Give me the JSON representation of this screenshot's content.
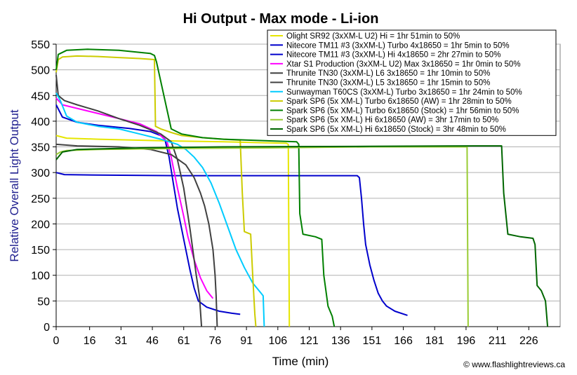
{
  "chart_data": {
    "type": "line",
    "title": "Hi Output - Max mode - Li-ion",
    "xlabel": "Time (min)",
    "ylabel": "Relative Overall Light Output",
    "credit": "© www.flashlightreviews.ca",
    "xlim": [
      0,
      241
    ],
    "ylim": [
      0,
      550
    ],
    "x_ticks": [
      0,
      16,
      31,
      46,
      61,
      76,
      91,
      106,
      121,
      136,
      151,
      166,
      181,
      196,
      211,
      226
    ],
    "y_ticks": [
      0,
      50,
      100,
      150,
      200,
      250,
      300,
      350,
      400,
      450,
      500,
      550
    ],
    "grid": "horizontal",
    "legend_position": "top-right",
    "series": [
      {
        "name": "Olight SR92 (3xXM-L U2) Hi = 1hr 51min to 50%",
        "color": "#e6e600",
        "points": [
          [
            0,
            372
          ],
          [
            5,
            367
          ],
          [
            20,
            365
          ],
          [
            50,
            362
          ],
          [
            80,
            360
          ],
          [
            100,
            358
          ],
          [
            110,
            357
          ],
          [
            111,
            355
          ],
          [
            111.5,
            0
          ]
        ]
      },
      {
        "name": "Nitecore TM11 #3 (3xXM-L) Turbo 4x18650 = 1hr 5min to 50%",
        "color": "#0000cc",
        "points": [
          [
            0,
            432
          ],
          [
            3,
            408
          ],
          [
            10,
            398
          ],
          [
            20,
            392
          ],
          [
            35,
            386
          ],
          [
            45,
            380
          ],
          [
            50,
            372
          ],
          [
            52,
            365
          ],
          [
            54,
            330
          ],
          [
            56,
            280
          ],
          [
            58,
            230
          ],
          [
            60,
            190
          ],
          [
            62,
            150
          ],
          [
            64,
            110
          ],
          [
            66,
            75
          ],
          [
            68,
            50
          ],
          [
            72,
            38
          ],
          [
            78,
            30
          ],
          [
            84,
            26
          ],
          [
            88,
            24
          ]
        ]
      },
      {
        "name": "Nitecore TM11 #3 (3xXM-L) Hi 4x18650 = 2hr 27min to 50%",
        "color": "#0000cc",
        "points": [
          [
            0,
            300
          ],
          [
            4,
            296
          ],
          [
            20,
            295
          ],
          [
            60,
            294
          ],
          [
            100,
            294
          ],
          [
            130,
            294
          ],
          [
            144,
            294
          ],
          [
            145,
            290
          ],
          [
            146,
            250
          ],
          [
            147,
            200
          ],
          [
            148,
            160
          ],
          [
            150,
            120
          ],
          [
            152,
            90
          ],
          [
            154,
            65
          ],
          [
            156,
            50
          ],
          [
            158,
            40
          ],
          [
            162,
            30
          ],
          [
            168,
            22
          ]
        ]
      },
      {
        "name": "Xtar S1 Production (3xXM-L U2) Max 3x18650 = 1hr 0min to 50%",
        "color": "#ff00ff",
        "points": [
          [
            0,
            445
          ],
          [
            3,
            432
          ],
          [
            10,
            425
          ],
          [
            20,
            415
          ],
          [
            30,
            405
          ],
          [
            40,
            395
          ],
          [
            48,
            380
          ],
          [
            53,
            360
          ],
          [
            55,
            330
          ],
          [
            58,
            270
          ],
          [
            61,
            215
          ],
          [
            63,
            175
          ],
          [
            66,
            130
          ],
          [
            69,
            95
          ],
          [
            72,
            70
          ],
          [
            75,
            55
          ]
        ]
      },
      {
        "name": "Thrunite TN30 (3xXM-L) L6 3x18650 = 1hr 10min to 50%",
        "color": "#404040",
        "points": [
          [
            0,
            490
          ],
          [
            1,
            450
          ],
          [
            4,
            440
          ],
          [
            10,
            432
          ],
          [
            20,
            420
          ],
          [
            30,
            405
          ],
          [
            40,
            392
          ],
          [
            50,
            375
          ],
          [
            55,
            360
          ],
          [
            58,
            325
          ],
          [
            61,
            270
          ],
          [
            64,
            190
          ],
          [
            67,
            100
          ],
          [
            68.5,
            60
          ],
          [
            69,
            30
          ],
          [
            69.5,
            0
          ]
        ]
      },
      {
        "name": "Thrunite TN30 (3xXM-L) L5 3x18650 = 1hr 15min to 50%",
        "color": "#404040",
        "points": [
          [
            0,
            355
          ],
          [
            10,
            352
          ],
          [
            30,
            350
          ],
          [
            45,
            345
          ],
          [
            55,
            335
          ],
          [
            62,
            315
          ],
          [
            66,
            290
          ],
          [
            69,
            260
          ],
          [
            71,
            235
          ],
          [
            73,
            200
          ],
          [
            75,
            150
          ],
          [
            76,
            100
          ],
          [
            76.5,
            60
          ],
          [
            77,
            0
          ]
        ]
      },
      {
        "name": "Sunwayman T60CS (3xXM-L) Turbo 3x18650 = 1hr 24min to 50%",
        "color": "#00ccff",
        "points": [
          [
            0,
            455
          ],
          [
            2,
            440
          ],
          [
            5,
            410
          ],
          [
            10,
            398
          ],
          [
            20,
            390
          ],
          [
            30,
            385
          ],
          [
            40,
            375
          ],
          [
            50,
            365
          ],
          [
            58,
            355
          ],
          [
            62,
            345
          ],
          [
            66,
            330
          ],
          [
            70,
            310
          ],
          [
            74,
            280
          ],
          [
            78,
            240
          ],
          [
            82,
            195
          ],
          [
            86,
            150
          ],
          [
            90,
            115
          ],
          [
            94,
            85
          ],
          [
            98,
            65
          ],
          [
            99,
            60
          ],
          [
            99.5,
            0
          ]
        ]
      },
      {
        "name": "Spark SP6 (5x XM-L) Turbo 6x18650 (AW) = 1hr 28min to 50%",
        "color": "#cccc00",
        "points": [
          [
            0,
            495
          ],
          [
            1,
            520
          ],
          [
            3,
            525
          ],
          [
            10,
            527
          ],
          [
            20,
            526
          ],
          [
            30,
            524
          ],
          [
            40,
            522
          ],
          [
            47,
            520
          ],
          [
            47.5,
            390
          ],
          [
            50,
            385
          ],
          [
            55,
            378
          ],
          [
            60,
            372
          ],
          [
            70,
            368
          ],
          [
            80,
            365
          ],
          [
            88,
            363
          ],
          [
            89,
            260
          ],
          [
            90,
            185
          ],
          [
            93,
            180
          ],
          [
            94,
            100
          ],
          [
            95,
            25
          ],
          [
            95.5,
            0
          ]
        ]
      },
      {
        "name": "Spark SP6 (5x XM-L) Turbo 6x18650 (Stock) = 1hr 56min to 50%",
        "color": "#008000",
        "points": [
          [
            0,
            500
          ],
          [
            1,
            530
          ],
          [
            5,
            538
          ],
          [
            15,
            540
          ],
          [
            30,
            538
          ],
          [
            45,
            532
          ],
          [
            47,
            528
          ],
          [
            48,
            515
          ],
          [
            55,
            385
          ],
          [
            60,
            375
          ],
          [
            70,
            368
          ],
          [
            80,
            365
          ],
          [
            100,
            362
          ],
          [
            115,
            360
          ],
          [
            116,
            355
          ],
          [
            116.5,
            220
          ],
          [
            118,
            180
          ],
          [
            124,
            175
          ],
          [
            127,
            170
          ],
          [
            128,
            100
          ],
          [
            130,
            40
          ],
          [
            132,
            20
          ],
          [
            133,
            0
          ]
        ]
      },
      {
        "name": "Spark SP6 (5x XM-L) Hi 6x18650 (AW) = 3hr 17min to 50%",
        "color": "#99cc33",
        "points": [
          [
            0,
            335
          ],
          [
            2,
            340
          ],
          [
            5,
            343
          ],
          [
            20,
            345
          ],
          [
            60,
            347
          ],
          [
            100,
            348
          ],
          [
            150,
            350
          ],
          [
            190,
            350
          ],
          [
            196.5,
            350
          ],
          [
            197,
            0
          ]
        ]
      },
      {
        "name": "Spark SP6 (5x XM-L) Hi 6x18650 (Stock) = 3hr 48min to 50%",
        "color": "#006600",
        "points": [
          [
            0,
            325
          ],
          [
            3,
            340
          ],
          [
            10,
            345
          ],
          [
            40,
            348
          ],
          [
            80,
            350
          ],
          [
            150,
            351
          ],
          [
            200,
            352
          ],
          [
            213,
            352
          ],
          [
            214,
            260
          ],
          [
            216,
            180
          ],
          [
            222,
            175
          ],
          [
            228,
            172
          ],
          [
            229,
            160
          ],
          [
            230,
            80
          ],
          [
            232,
            70
          ],
          [
            234,
            50
          ],
          [
            235,
            0
          ]
        ]
      }
    ]
  }
}
